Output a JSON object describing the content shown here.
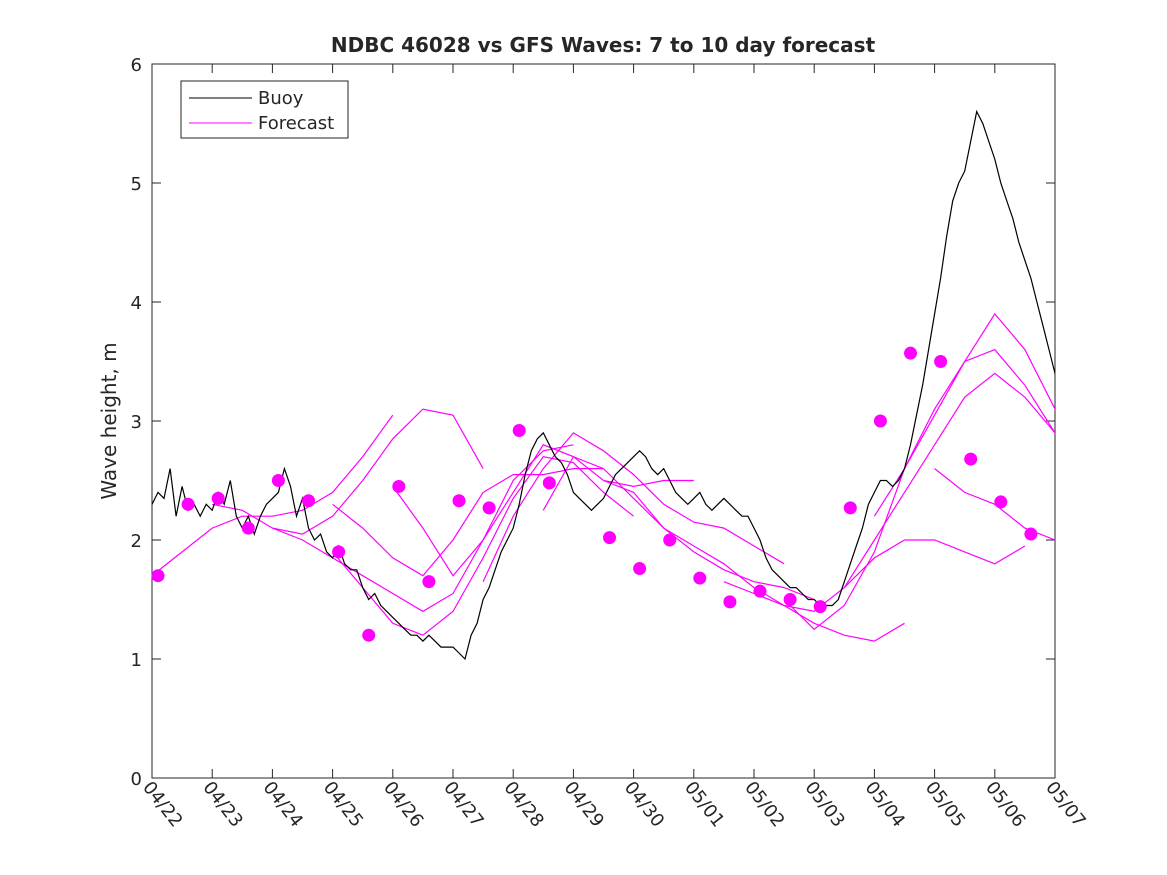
{
  "chart_data": {
    "type": "line",
    "title": "NDBC 46028 vs GFS Waves: 7 to 10 day forecast",
    "xlabel": "",
    "ylabel": "Wave height, m",
    "xlim": [
      0,
      15
    ],
    "ylim": [
      0,
      6
    ],
    "x_ticks": [
      "04/22",
      "04/23",
      "04/24",
      "04/25",
      "04/26",
      "04/27",
      "04/28",
      "04/29",
      "04/30",
      "05/01",
      "05/02",
      "05/03",
      "05/04",
      "05/05",
      "05/06",
      "05/07"
    ],
    "y_ticks": [
      0,
      1,
      2,
      3,
      4,
      5,
      6
    ],
    "legend": {
      "placement": "top-left",
      "entries": [
        {
          "label": "Buoy",
          "color": "#000000"
        },
        {
          "label": "Forecast",
          "color": "#ff00ff"
        }
      ]
    },
    "colors": {
      "buoy": "#000000",
      "forecast": "#ff00ff",
      "axes": "#262626"
    },
    "buoy": {
      "name": "Buoy",
      "points": [
        [
          0.0,
          2.3
        ],
        [
          0.1,
          2.4
        ],
        [
          0.2,
          2.35
        ],
        [
          0.3,
          2.6
        ],
        [
          0.4,
          2.2
        ],
        [
          0.5,
          2.45
        ],
        [
          0.6,
          2.25
        ],
        [
          0.7,
          2.3
        ],
        [
          0.8,
          2.2
        ],
        [
          0.9,
          2.3
        ],
        [
          1.0,
          2.25
        ],
        [
          1.1,
          2.4
        ],
        [
          1.2,
          2.3
        ],
        [
          1.3,
          2.5
        ],
        [
          1.4,
          2.2
        ],
        [
          1.5,
          2.1
        ],
        [
          1.6,
          2.2
        ],
        [
          1.7,
          2.05
        ],
        [
          1.8,
          2.2
        ],
        [
          1.9,
          2.3
        ],
        [
          2.0,
          2.35
        ],
        [
          2.1,
          2.4
        ],
        [
          2.2,
          2.6
        ],
        [
          2.3,
          2.45
        ],
        [
          2.4,
          2.2
        ],
        [
          2.5,
          2.35
        ],
        [
          2.6,
          2.1
        ],
        [
          2.7,
          2.0
        ],
        [
          2.8,
          2.05
        ],
        [
          2.9,
          1.9
        ],
        [
          3.0,
          1.85
        ],
        [
          3.1,
          1.95
        ],
        [
          3.2,
          1.8
        ],
        [
          3.3,
          1.75
        ],
        [
          3.4,
          1.75
        ],
        [
          3.5,
          1.6
        ],
        [
          3.6,
          1.5
        ],
        [
          3.7,
          1.55
        ],
        [
          3.8,
          1.45
        ],
        [
          3.9,
          1.4
        ],
        [
          4.0,
          1.35
        ],
        [
          4.1,
          1.3
        ],
        [
          4.2,
          1.25
        ],
        [
          4.3,
          1.2
        ],
        [
          4.4,
          1.2
        ],
        [
          4.5,
          1.15
        ],
        [
          4.6,
          1.2
        ],
        [
          4.7,
          1.15
        ],
        [
          4.8,
          1.1
        ],
        [
          4.9,
          1.1
        ],
        [
          5.0,
          1.1
        ],
        [
          5.1,
          1.05
        ],
        [
          5.2,
          1.0
        ],
        [
          5.3,
          1.2
        ],
        [
          5.4,
          1.3
        ],
        [
          5.5,
          1.5
        ],
        [
          5.6,
          1.6
        ],
        [
          5.7,
          1.75
        ],
        [
          5.8,
          1.9
        ],
        [
          5.9,
          2.0
        ],
        [
          6.0,
          2.1
        ],
        [
          6.1,
          2.3
        ],
        [
          6.2,
          2.55
        ],
        [
          6.3,
          2.75
        ],
        [
          6.4,
          2.85
        ],
        [
          6.5,
          2.9
        ],
        [
          6.6,
          2.8
        ],
        [
          6.7,
          2.7
        ],
        [
          6.8,
          2.65
        ],
        [
          6.9,
          2.55
        ],
        [
          7.0,
          2.4
        ],
        [
          7.1,
          2.35
        ],
        [
          7.2,
          2.3
        ],
        [
          7.3,
          2.25
        ],
        [
          7.4,
          2.3
        ],
        [
          7.5,
          2.35
        ],
        [
          7.6,
          2.45
        ],
        [
          7.7,
          2.55
        ],
        [
          7.8,
          2.6
        ],
        [
          7.9,
          2.65
        ],
        [
          8.0,
          2.7
        ],
        [
          8.1,
          2.75
        ],
        [
          8.2,
          2.7
        ],
        [
          8.3,
          2.6
        ],
        [
          8.4,
          2.55
        ],
        [
          8.5,
          2.6
        ],
        [
          8.6,
          2.5
        ],
        [
          8.7,
          2.4
        ],
        [
          8.8,
          2.35
        ],
        [
          8.9,
          2.3
        ],
        [
          9.0,
          2.35
        ],
        [
          9.1,
          2.4
        ],
        [
          9.2,
          2.3
        ],
        [
          9.3,
          2.25
        ],
        [
          9.4,
          2.3
        ],
        [
          9.5,
          2.35
        ],
        [
          9.6,
          2.3
        ],
        [
          9.7,
          2.25
        ],
        [
          9.8,
          2.2
        ],
        [
          9.9,
          2.2
        ],
        [
          10.0,
          2.1
        ],
        [
          10.1,
          2.0
        ],
        [
          10.2,
          1.85
        ],
        [
          10.3,
          1.75
        ],
        [
          10.4,
          1.7
        ],
        [
          10.5,
          1.65
        ],
        [
          10.6,
          1.6
        ],
        [
          10.7,
          1.6
        ],
        [
          10.8,
          1.55
        ],
        [
          10.9,
          1.5
        ],
        [
          11.0,
          1.5
        ],
        [
          11.1,
          1.45
        ],
        [
          11.2,
          1.45
        ],
        [
          11.3,
          1.45
        ],
        [
          11.4,
          1.5
        ],
        [
          11.5,
          1.65
        ],
        [
          11.6,
          1.8
        ],
        [
          11.7,
          1.95
        ],
        [
          11.8,
          2.1
        ],
        [
          11.9,
          2.3
        ],
        [
          12.0,
          2.4
        ],
        [
          12.1,
          2.5
        ],
        [
          12.2,
          2.5
        ],
        [
          12.3,
          2.45
        ],
        [
          12.4,
          2.5
        ],
        [
          12.5,
          2.6
        ],
        [
          12.6,
          2.8
        ],
        [
          12.7,
          3.05
        ],
        [
          12.8,
          3.3
        ],
        [
          12.9,
          3.6
        ],
        [
          13.0,
          3.9
        ],
        [
          13.1,
          4.2
        ],
        [
          13.2,
          4.55
        ],
        [
          13.3,
          4.85
        ],
        [
          13.4,
          5.0
        ],
        [
          13.5,
          5.1
        ],
        [
          13.6,
          5.35
        ],
        [
          13.7,
          5.6
        ],
        [
          13.8,
          5.5
        ],
        [
          13.9,
          5.35
        ],
        [
          14.0,
          5.2
        ],
        [
          14.1,
          5.0
        ],
        [
          14.2,
          4.85
        ],
        [
          14.3,
          4.7
        ],
        [
          14.4,
          4.5
        ],
        [
          14.5,
          4.35
        ],
        [
          14.6,
          4.2
        ],
        [
          14.7,
          4.0
        ],
        [
          14.8,
          3.8
        ],
        [
          14.9,
          3.6
        ],
        [
          15.0,
          3.4
        ],
        [
          15.1,
          3.2
        ],
        [
          15.2,
          3.0
        ],
        [
          15.3,
          2.8
        ],
        [
          15.4,
          2.6
        ],
        [
          15.5,
          2.45
        ],
        [
          15.6,
          2.35
        ],
        [
          15.7,
          2.2
        ],
        [
          15.8,
          2.1
        ],
        [
          15.9,
          2.05
        ],
        [
          16.0,
          2.0
        ]
      ]
    },
    "forecast_lines": [
      [
        [
          0.0,
          1.7
        ],
        [
          0.5,
          1.9
        ],
        [
          1.0,
          2.1
        ],
        [
          1.5,
          2.2
        ],
        [
          2.0,
          2.2
        ],
        [
          2.5,
          2.25
        ],
        [
          3.0,
          2.4
        ],
        [
          3.5,
          2.7
        ],
        [
          4.0,
          3.05
        ]
      ],
      [
        [
          1.0,
          2.3
        ],
        [
          1.5,
          2.25
        ],
        [
          2.0,
          2.1
        ],
        [
          2.5,
          2.05
        ],
        [
          3.0,
          2.2
        ],
        [
          3.5,
          2.5
        ],
        [
          4.0,
          2.85
        ],
        [
          4.5,
          3.1
        ],
        [
          5.0,
          3.05
        ],
        [
          5.5,
          2.6
        ]
      ],
      [
        [
          2.0,
          2.1
        ],
        [
          2.5,
          2.0
        ],
        [
          3.0,
          1.85
        ],
        [
          3.5,
          1.7
        ],
        [
          4.0,
          1.55
        ],
        [
          4.5,
          1.4
        ],
        [
          5.0,
          1.55
        ],
        [
          5.5,
          2.0
        ],
        [
          6.0,
          2.5
        ],
        [
          6.5,
          2.75
        ],
        [
          7.0,
          2.8
        ]
      ],
      [
        [
          3.0,
          2.3
        ],
        [
          3.5,
          2.1
        ],
        [
          4.0,
          1.85
        ],
        [
          4.5,
          1.7
        ],
        [
          5.0,
          2.0
        ],
        [
          5.5,
          2.4
        ],
        [
          6.0,
          2.55
        ],
        [
          6.5,
          2.55
        ],
        [
          7.0,
          2.6
        ],
        [
          7.5,
          2.6
        ]
      ],
      [
        [
          3.0,
          1.9
        ],
        [
          3.5,
          1.6
        ],
        [
          4.0,
          1.3
        ],
        [
          4.5,
          1.2
        ],
        [
          5.0,
          1.4
        ],
        [
          5.5,
          1.85
        ],
        [
          6.0,
          2.35
        ],
        [
          6.5,
          2.7
        ],
        [
          7.0,
          2.65
        ],
        [
          7.5,
          2.4
        ],
        [
          8.0,
          2.2
        ]
      ],
      [
        [
          4.0,
          2.45
        ],
        [
          4.5,
          2.1
        ],
        [
          5.0,
          1.7
        ],
        [
          5.5,
          2.0
        ],
        [
          6.0,
          2.4
        ],
        [
          6.5,
          2.8
        ],
        [
          7.0,
          2.7
        ],
        [
          7.5,
          2.5
        ],
        [
          8.0,
          2.45
        ],
        [
          8.5,
          2.5
        ],
        [
          9.0,
          2.5
        ]
      ],
      [
        [
          5.5,
          1.65
        ],
        [
          6.0,
          2.2
        ],
        [
          6.5,
          2.6
        ],
        [
          7.0,
          2.9
        ],
        [
          7.5,
          2.75
        ],
        [
          8.0,
          2.55
        ],
        [
          8.5,
          2.3
        ],
        [
          9.0,
          2.15
        ],
        [
          9.5,
          2.1
        ],
        [
          10.0,
          1.95
        ],
        [
          10.5,
          1.8
        ]
      ],
      [
        [
          6.5,
          2.25
        ],
        [
          7.0,
          2.7
        ],
        [
          7.5,
          2.6
        ],
        [
          8.0,
          2.35
        ],
        [
          8.5,
          2.1
        ],
        [
          9.0,
          1.9
        ],
        [
          9.5,
          1.75
        ],
        [
          10.0,
          1.65
        ],
        [
          10.5,
          1.6
        ],
        [
          11.0,
          1.5
        ]
      ],
      [
        [
          7.5,
          2.5
        ],
        [
          8.0,
          2.4
        ],
        [
          8.5,
          2.1
        ],
        [
          9.0,
          1.95
        ],
        [
          9.5,
          1.8
        ],
        [
          10.0,
          1.6
        ],
        [
          10.5,
          1.45
        ],
        [
          11.0,
          1.3
        ],
        [
          11.5,
          1.2
        ],
        [
          12.0,
          1.15
        ],
        [
          12.5,
          1.3
        ]
      ],
      [
        [
          9.5,
          1.65
        ],
        [
          10.0,
          1.55
        ],
        [
          10.5,
          1.45
        ],
        [
          11.0,
          1.4
        ],
        [
          11.5,
          1.6
        ],
        [
          12.0,
          1.85
        ],
        [
          12.5,
          2.0
        ],
        [
          13.0,
          2.0
        ],
        [
          13.5,
          1.9
        ],
        [
          14.0,
          1.8
        ],
        [
          14.5,
          1.95
        ]
      ],
      [
        [
          10.5,
          1.5
        ],
        [
          11.0,
          1.25
        ],
        [
          11.5,
          1.45
        ],
        [
          12.0,
          1.9
        ],
        [
          12.5,
          2.6
        ],
        [
          13.0,
          3.1
        ],
        [
          13.5,
          3.5
        ],
        [
          14.0,
          3.6
        ],
        [
          14.5,
          3.3
        ],
        [
          15.0,
          2.9
        ],
        [
          15.5,
          2.5
        ],
        [
          16.0,
          2.2
        ]
      ],
      [
        [
          11.5,
          1.6
        ],
        [
          12.0,
          2.0
        ],
        [
          12.5,
          2.4
        ],
        [
          13.0,
          2.8
        ],
        [
          13.5,
          3.2
        ],
        [
          14.0,
          3.4
        ],
        [
          14.5,
          3.2
        ],
        [
          15.0,
          2.9
        ],
        [
          15.5,
          2.6
        ],
        [
          16.0,
          2.3
        ]
      ],
      [
        [
          12.0,
          2.2
        ],
        [
          12.5,
          2.6
        ],
        [
          13.0,
          3.05
        ],
        [
          13.5,
          3.5
        ],
        [
          14.0,
          3.9
        ],
        [
          14.5,
          3.6
        ],
        [
          15.0,
          3.1
        ],
        [
          15.5,
          2.55
        ],
        [
          16.0,
          2.1
        ]
      ],
      [
        [
          13.0,
          2.6
        ],
        [
          13.5,
          2.4
        ],
        [
          14.0,
          2.3
        ],
        [
          14.5,
          2.1
        ],
        [
          15.0,
          2.0
        ],
        [
          15.5,
          1.85
        ],
        [
          16.0,
          1.65
        ]
      ]
    ],
    "forecast_points": [
      [
        0.1,
        1.7
      ],
      [
        0.6,
        2.3
      ],
      [
        1.1,
        2.35
      ],
      [
        1.6,
        2.1
      ],
      [
        2.1,
        2.5
      ],
      [
        2.6,
        2.33
      ],
      [
        3.1,
        1.9
      ],
      [
        3.6,
        1.2
      ],
      [
        4.1,
        2.45
      ],
      [
        4.6,
        1.65
      ],
      [
        5.1,
        2.33
      ],
      [
        5.6,
        2.27
      ],
      [
        6.1,
        2.92
      ],
      [
        6.6,
        2.48
      ],
      [
        7.6,
        2.02
      ],
      [
        8.1,
        1.76
      ],
      [
        8.6,
        2.0
      ],
      [
        9.1,
        1.68
      ],
      [
        9.6,
        1.48
      ],
      [
        10.1,
        1.57
      ],
      [
        10.6,
        1.5
      ],
      [
        11.1,
        1.44
      ],
      [
        11.6,
        2.27
      ],
      [
        12.1,
        3.0
      ],
      [
        12.6,
        3.57
      ],
      [
        13.1,
        3.5
      ],
      [
        13.6,
        2.68
      ],
      [
        14.1,
        2.32
      ],
      [
        14.6,
        2.05
      ]
    ]
  }
}
